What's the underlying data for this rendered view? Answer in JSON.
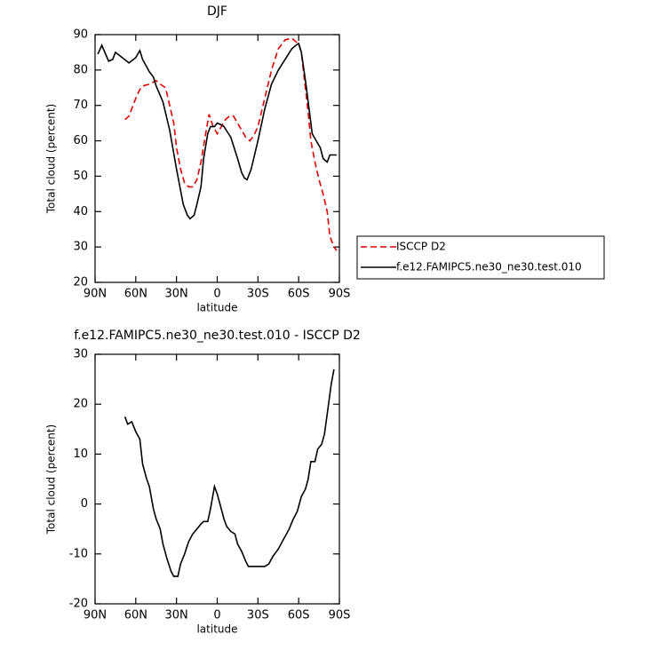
{
  "chart_data": [
    {
      "type": "line",
      "title": "DJF",
      "x_label": "latitude",
      "y_label": "Total cloud (percent)",
      "xlim": [
        90,
        -90
      ],
      "ylim": [
        20,
        90
      ],
      "xticks": [
        {
          "value": 90,
          "label": "90N"
        },
        {
          "value": 60,
          "label": "60N"
        },
        {
          "value": 30,
          "label": "30N"
        },
        0,
        {
          "value": -30,
          "label": "30S"
        },
        {
          "value": -60,
          "label": "60S"
        },
        {
          "value": -90,
          "label": "90S"
        }
      ],
      "yticks": [
        20,
        30,
        40,
        50,
        60,
        70,
        80,
        90
      ],
      "series": [
        {
          "name": "ISCCP D2",
          "color": "#e00000",
          "dash": true,
          "x": [
            68,
            65,
            60,
            57,
            55,
            50,
            45,
            42,
            38,
            35,
            32,
            30,
            27,
            24,
            21,
            18,
            15,
            12,
            9,
            6,
            3,
            0,
            -3,
            -6,
            -9,
            -12,
            -15,
            -18,
            -21,
            -24,
            -27,
            -30,
            -35,
            -40,
            -45,
            -50,
            -55,
            -58,
            -60,
            -62,
            -64,
            -67,
            -69,
            -72,
            -75,
            -78,
            -81,
            -83,
            -86,
            -88
          ],
          "values": [
            66,
            67,
            72,
            74.5,
            75.5,
            76,
            77,
            76,
            75,
            70,
            65,
            58,
            52,
            48,
            47,
            47,
            49,
            54,
            61,
            67.5,
            64,
            62,
            64,
            66,
            67,
            67,
            65,
            63,
            61,
            60,
            61.5,
            64,
            72,
            80,
            86,
            88.5,
            89,
            88,
            87.5,
            85,
            78,
            68,
            60,
            54,
            49,
            45,
            40,
            33,
            30,
            29
          ]
        },
        {
          "name": "f.e12.FAMIPC5.ne30_ne30.test.010",
          "color": "#000000",
          "dash": false,
          "x": [
            88,
            85,
            80,
            77,
            75,
            70,
            65,
            60,
            57,
            55,
            50,
            47,
            45,
            40,
            35,
            30,
            25,
            22,
            20,
            17,
            15,
            12,
            10,
            7,
            5,
            2,
            0,
            -3,
            -5,
            -10,
            -15,
            -18,
            -20,
            -22,
            -25,
            -30,
            -35,
            -40,
            -45,
            -50,
            -55,
            -58,
            -60,
            -62,
            -65,
            -68,
            -70,
            -73,
            -76,
            -78,
            -81,
            -83,
            -88
          ],
          "values": [
            84.5,
            87,
            82.5,
            83,
            85,
            83.5,
            82,
            83.5,
            85.5,
            83,
            79.5,
            78,
            75.5,
            71,
            63,
            52,
            42,
            39,
            38,
            39,
            42,
            47,
            55,
            62,
            64,
            64,
            65,
            64.5,
            64,
            61,
            55,
            51,
            49.5,
            49,
            52,
            60,
            69,
            76,
            80,
            83,
            86,
            87,
            87.5,
            85,
            77,
            68,
            62,
            60,
            58,
            55,
            54,
            56,
            56
          ]
        }
      ]
    },
    {
      "type": "line",
      "title": "f.e12.FAMIPC5.ne30_ne30.test.010 - ISCCP D2",
      "x_label": "latitude",
      "y_label": "Total cloud (percent)",
      "xlim": [
        90,
        -90
      ],
      "ylim": [
        -20,
        30
      ],
      "xticks": [
        {
          "value": 90,
          "label": "90N"
        },
        {
          "value": 60,
          "label": "60N"
        },
        {
          "value": 30,
          "label": "30N"
        },
        0,
        {
          "value": -30,
          "label": "30S"
        },
        {
          "value": -60,
          "label": "60S"
        },
        {
          "value": -90,
          "label": "90S"
        }
      ],
      "yticks": [
        -20,
        -10,
        0,
        10,
        20,
        30
      ],
      "color": "#000000",
      "x": [
        68,
        66,
        63,
        60,
        57,
        55,
        52,
        50,
        47,
        45,
        42,
        40,
        37,
        34,
        32,
        29,
        27,
        24,
        21,
        18,
        15,
        12,
        10,
        7,
        5,
        2,
        0,
        -2,
        -5,
        -7,
        -10,
        -13,
        -15,
        -18,
        -21,
        -23,
        -27,
        -31,
        -35,
        -38,
        -41,
        -45,
        -49,
        -53,
        -56,
        -59,
        -62,
        -65,
        -67,
        -69,
        -72,
        -74,
        -77,
        -79,
        -82,
        -84,
        -86
      ],
      "values": [
        17.5,
        16,
        16.5,
        14.5,
        13,
        8,
        5,
        3.5,
        -1,
        -3,
        -5,
        -8,
        -11,
        -13.5,
        -14.5,
        -14.5,
        -12,
        -10,
        -7.5,
        -6,
        -5,
        -4,
        -3.5,
        -3.5,
        -1,
        3.5,
        2,
        0,
        -3,
        -4.5,
        -5.5,
        -6,
        -8,
        -9.5,
        -11.5,
        -12.5,
        -12.5,
        -12.5,
        -12.5,
        -12,
        -10.5,
        -9,
        -7,
        -5,
        -3,
        -1.5,
        1.5,
        3,
        5,
        8.5,
        8.5,
        11,
        12,
        14,
        20,
        24,
        27
      ]
    }
  ]
}
